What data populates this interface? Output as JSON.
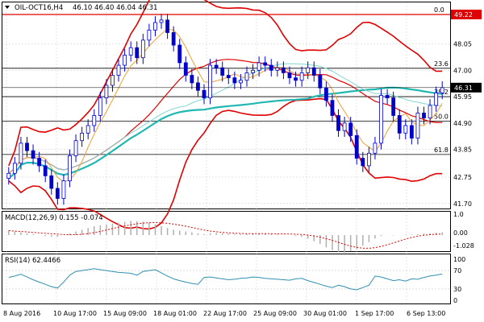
{
  "header": {
    "symbol": "OIL-OCT16,H4",
    "ohlc": "46.10 46.40 46.04 46.31"
  },
  "price_axis": {
    "ticks": [
      "49.22",
      "48.05",
      "47.00",
      "45.95",
      "44.90",
      "43.85",
      "42.75",
      "41.70"
    ],
    "current_price": "46.31",
    "red_marker": "49.22"
  },
  "fib_levels": [
    {
      "label": "0.0",
      "price": 49.22
    },
    {
      "label": "23.6",
      "price": 47.08
    },
    {
      "label": "38.2",
      "price": 45.95
    },
    {
      "label": "50.0",
      "price": 44.98
    },
    {
      "label": "61.8",
      "price": 43.65
    }
  ],
  "macd": {
    "label": "MACD(12,26,9) 0.155 -0.074",
    "ticks": [
      "1.0",
      "0.00",
      "-1.028"
    ]
  },
  "rsi": {
    "label": "RSI(14) 62.4466",
    "ticks": [
      "100",
      "70",
      "30",
      "0"
    ]
  },
  "date_axis": [
    "8 Aug 2016",
    "10 Aug 17:00",
    "15 Aug 09:00",
    "18 Aug 01:00",
    "22 Aug 17:00",
    "25 Aug 09:00",
    "30 Aug 01:00",
    "1 Sep 17:00",
    "6 Sep 13:00"
  ],
  "colors": {
    "background": "#ffffff",
    "grid": "#c8c8c8",
    "bollinger": "#e00000",
    "ma_slow": "#20b8b0",
    "ma_mid": "#80d8d0",
    "ma_fast": "#f0a030",
    "candle": "#0000cc",
    "candle_up": "#ffffff",
    "fib_line": "#000000",
    "price_label_bg": "#000000",
    "resist_label_bg": "#e00000",
    "macd_hist": "#b0b0b0",
    "macd_signal": "#e00000",
    "rsi_line": "#3090b0"
  },
  "chart_data": {
    "type": "candlestick",
    "title": "OIL-OCT16,H4",
    "ylim": [
      41.5,
      49.7
    ],
    "candles_close": [
      42.9,
      43.3,
      44.1,
      43.8,
      43.5,
      43.2,
      42.8,
      42.3,
      41.9,
      42.6,
      43.6,
      44.2,
      44.5,
      44.8,
      45.2,
      45.9,
      46.4,
      46.8,
      47.2,
      47.6,
      47.9,
      47.5,
      48.2,
      48.6,
      48.9,
      49.0,
      48.5,
      48.0,
      47.3,
      46.8,
      46.5,
      46.2,
      45.9,
      47.2,
      47.1,
      46.8,
      46.7,
      46.5,
      46.6,
      46.9,
      47.0,
      47.3,
      47.2,
      47.0,
      47.1,
      46.9,
      46.7,
      46.6,
      46.9,
      47.1,
      46.8,
      46.3,
      45.8,
      45.2,
      44.6,
      44.9,
      44.4,
      43.5,
      43.2,
      43.7,
      44.1,
      46.0,
      45.9,
      45.2,
      44.5,
      44.8,
      44.3,
      45.3,
      45.1,
      45.6,
      46.1,
      46.31
    ],
    "macd_hist": [
      0.25,
      0.2,
      0.15,
      0.1,
      0.05,
      0.0,
      -0.05,
      -0.1,
      -0.1,
      0.0,
      0.1,
      0.2,
      0.3,
      0.4,
      0.5,
      0.55,
      0.6,
      0.65,
      0.7,
      0.75,
      0.8,
      0.78,
      0.75,
      0.7,
      0.6,
      0.5,
      0.4,
      0.3,
      0.25,
      0.2,
      0.15,
      0.1,
      0.05,
      0.1,
      0.12,
      0.1,
      0.08,
      0.06,
      0.05,
      0.06,
      0.08,
      0.1,
      0.1,
      0.08,
      0.05,
      0.02,
      0.0,
      -0.05,
      -0.1,
      -0.2,
      -0.35,
      -0.5,
      -0.7,
      -0.85,
      -0.95,
      -1.0,
      -0.9,
      -0.8,
      -0.6,
      -0.4,
      -0.2,
      -0.05,
      0.0,
      -0.02,
      0.0,
      0.02,
      0.03,
      0.05,
      0.08,
      0.1,
      0.13,
      0.155
    ],
    "rsi": [
      55,
      58,
      62,
      56,
      50,
      45,
      40,
      35,
      32,
      45,
      60,
      68,
      70,
      72,
      74,
      72,
      70,
      68,
      66,
      65,
      64,
      60,
      68,
      70,
      72,
      65,
      58,
      52,
      48,
      45,
      42,
      40,
      55,
      56,
      54,
      52,
      50,
      51,
      53,
      54,
      56,
      55,
      53,
      52,
      51,
      50,
      49,
      52,
      53,
      48,
      44,
      40,
      36,
      33,
      38,
      35,
      30,
      28,
      33,
      38,
      58,
      56,
      52,
      48,
      50,
      47,
      52,
      51,
      55,
      58,
      60,
      62.4466
    ]
  }
}
